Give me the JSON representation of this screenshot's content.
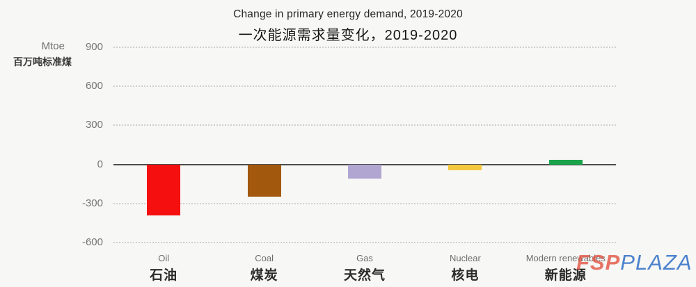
{
  "title": {
    "en": "Change in primary energy demand, 2019-2020",
    "zh": "一次能源需求量变化，2019-2020"
  },
  "y_axis": {
    "unit_en": "Mtoe",
    "unit_zh": "百万吨标准煤",
    "ticks": [
      900,
      600,
      300,
      0,
      -300,
      -600
    ]
  },
  "chart_data": {
    "type": "bar",
    "categories": [
      {
        "en": "Oil",
        "zh": "石油"
      },
      {
        "en": "Coal",
        "zh": "煤炭"
      },
      {
        "en": "Gas",
        "zh": "天然气"
      },
      {
        "en": "Nuclear",
        "zh": "核电"
      },
      {
        "en": "Modern renewables",
        "zh": "新能源"
      }
    ],
    "values": [
      -390,
      -250,
      -110,
      -45,
      35
    ],
    "bar_colors": [
      "#f50f0f",
      "#a2590e",
      "#b1a6d1",
      "#f3c83d",
      "#19a44b"
    ],
    "title": "Change in primary energy demand, 2019-2020",
    "xlabel": "",
    "ylabel": "Mtoe",
    "ylim": [
      -600,
      900
    ],
    "grid": "dotted-horizontal",
    "legend": "none"
  },
  "watermark": {
    "part1": "FSP",
    "part2": "PLAZA",
    "color1": "#e2503e",
    "color2": "#4c82cd"
  },
  "colors": {
    "background": "#f7f7f5",
    "zero_line": "#4d4d4d",
    "gridline": "#cfcfcf",
    "tick_text": "#757575"
  }
}
